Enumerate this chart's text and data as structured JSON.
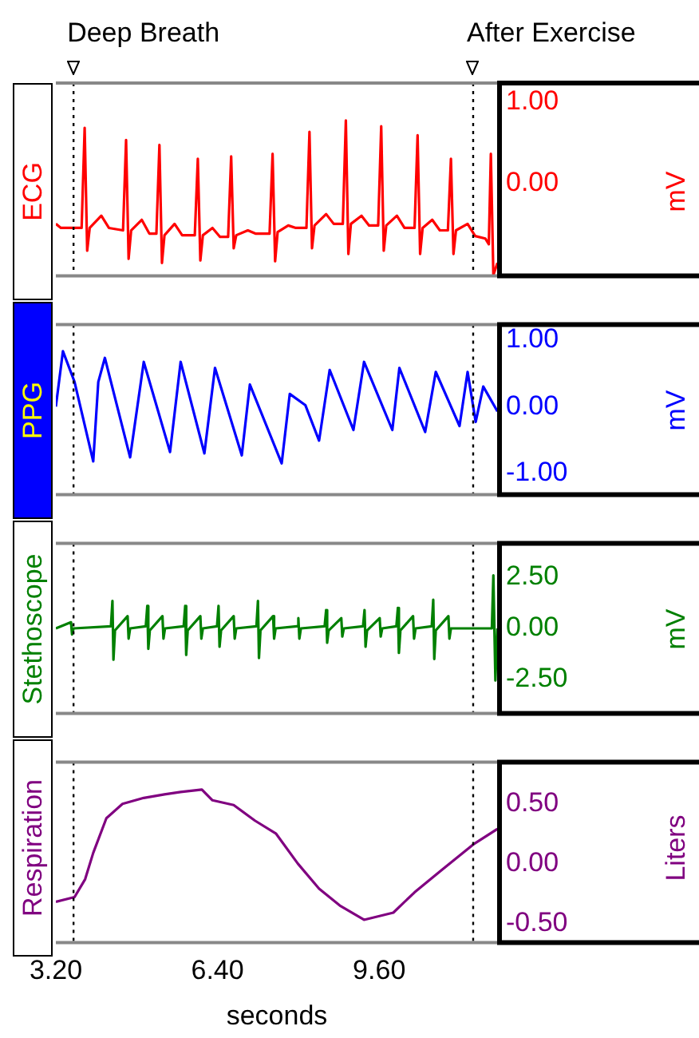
{
  "chart_data": [
    {
      "type": "line",
      "title": "ECG",
      "ylabel": "mV",
      "xlim": [
        3.2,
        11.95
      ],
      "ylim": [
        -1.14,
        1.23
      ],
      "yticks": [
        {
          "value": 0,
          "label": "0.00"
        },
        {
          "value": 1,
          "label": "1.00"
        }
      ],
      "tick_labels": "y",
      "marker": "none",
      "grid": false,
      "ref_lines": [
        {
          "axis": "x",
          "value": 3.55,
          "label": "Deep Breath",
          "color": "#000000",
          "line_style": "dotted"
        },
        {
          "axis": "x",
          "value": 11.46,
          "label": "After Exercise",
          "color": "#000000",
          "line_style": "dotted"
        }
      ],
      "series": [
        {
          "color": "#ff0000",
          "x": [
            3.2,
            3.3,
            3.71,
            3.77,
            3.82,
            3.87,
            4.1,
            4.25,
            4.53,
            4.59,
            4.64,
            4.69,
            4.9,
            5.05,
            5.19,
            5.25,
            5.3,
            5.35,
            5.55,
            5.7,
            5.95,
            6.01,
            6.06,
            6.11,
            6.3,
            6.45,
            6.61,
            6.67,
            6.72,
            6.77,
            7.0,
            7.15,
            7.43,
            7.49,
            7.54,
            7.59,
            7.8,
            7.95,
            8.16,
            8.22,
            8.27,
            8.32,
            8.55,
            8.7,
            8.88,
            8.94,
            8.99,
            9.04,
            9.25,
            9.4,
            9.58,
            9.64,
            9.69,
            9.74,
            9.95,
            10.1,
            10.3,
            10.36,
            10.41,
            10.46,
            10.65,
            10.8,
            10.96,
            11.02,
            11.07,
            11.12,
            11.35,
            11.5,
            11.7,
            11.77,
            11.81,
            11.86,
            11.94
          ],
          "values": [
            -0.5,
            -0.55,
            -0.55,
            0.68,
            -0.83,
            -0.55,
            -0.4,
            -0.55,
            -0.58,
            0.53,
            -0.93,
            -0.58,
            -0.45,
            -0.62,
            -0.62,
            0.47,
            -0.98,
            -0.64,
            -0.5,
            -0.64,
            -0.64,
            0.3,
            -0.95,
            -0.64,
            -0.55,
            -0.66,
            -0.66,
            0.33,
            -0.8,
            -0.64,
            -0.58,
            -0.62,
            -0.62,
            0.36,
            -0.96,
            -0.6,
            -0.52,
            -0.55,
            -0.55,
            0.63,
            -0.8,
            -0.52,
            -0.38,
            -0.5,
            -0.5,
            0.77,
            -0.87,
            -0.5,
            -0.4,
            -0.52,
            -0.52,
            0.7,
            -0.83,
            -0.52,
            -0.4,
            -0.55,
            -0.55,
            0.59,
            -0.87,
            -0.55,
            -0.45,
            -0.58,
            -0.58,
            0.3,
            -0.87,
            -0.58,
            -0.5,
            -0.65,
            -0.68,
            -0.75,
            0.36,
            -1.13,
            -0.98
          ]
        }
      ]
    },
    {
      "type": "line",
      "title": "PPG",
      "ylabel": "mV",
      "xlim": [
        3.2,
        11.95
      ],
      "ylim": [
        -1.32,
        1.23
      ],
      "yticks": [
        {
          "value": -1,
          "label": "-1.00"
        },
        {
          "value": 0,
          "label": "0.00"
        },
        {
          "value": 1,
          "label": "1.00"
        }
      ],
      "tick_labels": "y",
      "marker": "none",
      "grid": false,
      "ref_lines": [
        {
          "axis": "x",
          "value": 3.55,
          "color": "#000000",
          "line_style": "dotted"
        },
        {
          "axis": "x",
          "value": 11.46,
          "color": "#000000",
          "line_style": "dotted"
        }
      ],
      "series": [
        {
          "color": "#0000ff",
          "x": [
            3.2,
            3.34,
            3.57,
            3.94,
            4.04,
            4.17,
            4.67,
            4.94,
            5.46,
            5.67,
            6.14,
            6.35,
            6.88,
            7.04,
            7.67,
            7.83,
            8.14,
            8.41,
            8.62,
            9.09,
            9.3,
            9.86,
            10.0,
            10.51,
            10.72,
            11.19,
            11.35,
            11.51,
            11.66,
            11.94
          ],
          "values": [
            0.0,
            0.83,
            0.37,
            -0.82,
            0.37,
            0.73,
            -0.76,
            0.67,
            -0.68,
            0.67,
            -0.7,
            0.58,
            -0.73,
            0.33,
            -0.85,
            0.19,
            0.02,
            -0.51,
            0.55,
            -0.35,
            0.67,
            -0.35,
            0.58,
            -0.38,
            0.52,
            -0.29,
            0.52,
            -0.23,
            0.3,
            -0.07
          ]
        }
      ]
    },
    {
      "type": "line",
      "title": "Stethoscope",
      "ylabel": "mV",
      "xlim": [
        3.2,
        11.95
      ],
      "ylim": [
        -4.17,
        4.17
      ],
      "yticks": [
        {
          "value": -2.5,
          "label": "-2.50"
        },
        {
          "value": 0,
          "label": "0.00"
        },
        {
          "value": 2.5,
          "label": "2.50"
        }
      ],
      "tick_labels": "y",
      "marker": "none",
      "grid": false,
      "ref_lines": [
        {
          "axis": "x",
          "value": 3.55,
          "color": "#000000",
          "line_style": "dotted"
        },
        {
          "axis": "x",
          "value": 11.46,
          "color": "#000000",
          "line_style": "dotted"
        }
      ],
      "series": [
        {
          "color": "#008000",
          "x": [
            3.2,
            3.5,
            3.52,
            3.55,
            4.29,
            4.32,
            4.34,
            4.37,
            4.62,
            4.64,
            4.67,
            4.98,
            5.01,
            5.03,
            5.06,
            5.31,
            5.33,
            5.36,
            5.73,
            5.76,
            5.78,
            5.81,
            6.06,
            6.08,
            6.11,
            6.39,
            6.42,
            6.44,
            6.47,
            6.72,
            6.74,
            6.77,
            7.17,
            7.2,
            7.22,
            7.25,
            7.5,
            7.52,
            7.55,
            7.97,
            8.0,
            8.02,
            8.05,
            8.52,
            8.55,
            8.57,
            8.6,
            8.85,
            8.87,
            8.9,
            9.28,
            9.31,
            9.33,
            9.36,
            9.61,
            9.63,
            9.66,
            9.94,
            9.97,
            9.99,
            10.02,
            10.27,
            10.29,
            10.32,
            10.64,
            10.67,
            10.69,
            10.72,
            10.97,
            10.99,
            11.02,
            11.83,
            11.86,
            11.9,
            11.94
          ],
          "values": [
            0.0,
            0.3,
            -0.3,
            0.0,
            0.1,
            1.35,
            -1.53,
            -0.1,
            0.6,
            -0.5,
            0.0,
            0.1,
            1.1,
            -1.0,
            -0.1,
            0.6,
            -0.5,
            0.0,
            0.1,
            1.1,
            -1.3,
            -0.1,
            0.6,
            -0.5,
            0.0,
            0.1,
            1.1,
            -0.9,
            -0.1,
            0.6,
            -0.5,
            0.0,
            0.1,
            1.35,
            -1.45,
            -0.1,
            0.6,
            -0.5,
            0.0,
            0.1,
            0.5,
            -0.5,
            0.0,
            0.1,
            0.9,
            -0.7,
            -0.1,
            0.5,
            -0.4,
            0.0,
            0.1,
            0.9,
            -0.9,
            -0.1,
            0.5,
            -0.4,
            0.0,
            0.1,
            1.0,
            -1.2,
            -0.1,
            0.6,
            -0.5,
            0.0,
            0.1,
            1.4,
            -1.5,
            -0.1,
            0.6,
            -0.5,
            0.0,
            0.0,
            2.6,
            -2.55,
            0.0
          ]
        }
      ]
    },
    {
      "type": "line",
      "title": "Respiration",
      "ylabel": "Liters",
      "xlabel": "seconds",
      "xlim": [
        3.2,
        11.95
      ],
      "ylim": [
        -0.66,
        0.85
      ],
      "xticks": [
        {
          "value": 3.2,
          "label": "3.20"
        },
        {
          "value": 6.4,
          "label": "6.40"
        },
        {
          "value": 9.6,
          "label": "9.60"
        }
      ],
      "yticks": [
        {
          "value": -0.5,
          "label": "-0.50"
        },
        {
          "value": 0,
          "label": "0.00"
        },
        {
          "value": 0.5,
          "label": "0.50"
        }
      ],
      "marker": "none",
      "grid": false,
      "ref_lines": [
        {
          "axis": "x",
          "value": 3.55,
          "color": "#000000",
          "line_style": "dotted"
        },
        {
          "axis": "x",
          "value": 11.46,
          "color": "#000000",
          "line_style": "dotted"
        }
      ],
      "series": [
        {
          "color": "#800080",
          "x": [
            3.2,
            3.57,
            3.78,
            3.94,
            4.2,
            4.52,
            4.94,
            5.35,
            5.67,
            6.09,
            6.3,
            6.72,
            7.14,
            7.56,
            7.99,
            8.41,
            8.82,
            9.3,
            9.88,
            10.3,
            10.82,
            11.46,
            11.94
          ],
          "values": [
            -0.32,
            -0.28,
            -0.13,
            0.09,
            0.38,
            0.5,
            0.55,
            0.58,
            0.6,
            0.62,
            0.53,
            0.49,
            0.36,
            0.25,
            0.0,
            -0.21,
            -0.35,
            -0.47,
            -0.41,
            -0.24,
            -0.06,
            0.16,
            0.29
          ]
        }
      ]
    }
  ]
}
